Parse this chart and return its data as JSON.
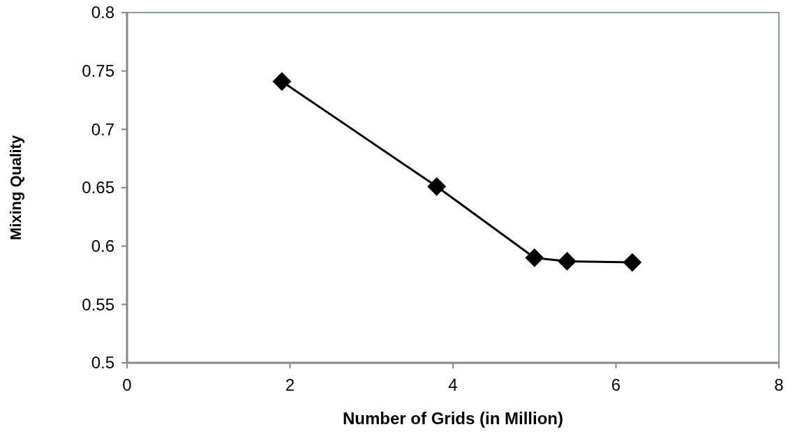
{
  "chart_data": {
    "type": "line",
    "xlabel": "Number of Grids (in Million)",
    "ylabel": "Mixing Quality",
    "x": [
      1.9,
      3.8,
      5.0,
      5.4,
      6.2
    ],
    "series": [
      {
        "color": "#000000",
        "values": [
          0.741,
          0.651,
          0.59,
          0.587,
          0.586
        ]
      }
    ],
    "xlim": [
      0,
      8
    ],
    "xticks": [
      0,
      2,
      4,
      6,
      8
    ],
    "ylim": [
      0.5,
      0.8
    ],
    "yticks": [
      0.5,
      0.55,
      0.6,
      0.65,
      0.7,
      0.75,
      0.8
    ],
    "grid": false,
    "marker": "diamond",
    "line_style": "solid"
  }
}
